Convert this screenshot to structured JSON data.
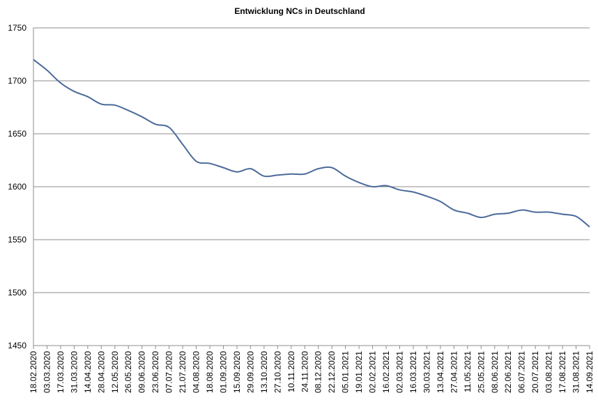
{
  "chart_data": {
    "type": "line",
    "title": "Entwicklung NCs in Deutschland",
    "categories": [
      "18.02.2020",
      "03.03.2020",
      "17.03.2020",
      "31.03.2020",
      "14.04.2020",
      "28.04.2020",
      "12.05.2020",
      "26.05.2020",
      "09.06.2020",
      "23.06.2020",
      "07.07.2020",
      "21.07.2020",
      "04.08.2020",
      "18.08.2020",
      "01.09.2020",
      "15.09.2020",
      "29.09.2020",
      "13.10.2020",
      "27.10.2020",
      "10.11.2020",
      "24.11.2020",
      "08.12.2020",
      "22.12.2020",
      "05.01.2021",
      "19.01.2021",
      "02.02.2021",
      "16.02.2021",
      "02.03.2021",
      "16.03.2021",
      "30.03.2021",
      "13.04.2021",
      "27.04.2021",
      "11.05.2021",
      "25.05.2021",
      "08.06.2021",
      "22.06.2021",
      "06.07.2021",
      "20.07.2021",
      "03.08.2021",
      "17.08.2021",
      "31.08.2021",
      "14.09.2021"
    ],
    "series": [
      {
        "name": "NCs",
        "color": "#4a6a9a",
        "values": [
          1720,
          1710,
          1698,
          1690,
          1685,
          1678,
          1677,
          1672,
          1666,
          1659,
          1656,
          1640,
          1624,
          1622,
          1618,
          1614,
          1617,
          1610,
          1611,
          1612,
          1612,
          1617,
          1618,
          1610,
          1604,
          1600,
          1601,
          1597,
          1595,
          1591,
          1586,
          1578,
          1575,
          1571,
          1574,
          1575,
          1578,
          1576,
          1576,
          1574,
          1572,
          1562
        ]
      }
    ],
    "ylim": [
      1450,
      1750
    ],
    "yticks": [
      1450,
      1500,
      1550,
      1600,
      1650,
      1700,
      1750
    ],
    "grid": true
  }
}
